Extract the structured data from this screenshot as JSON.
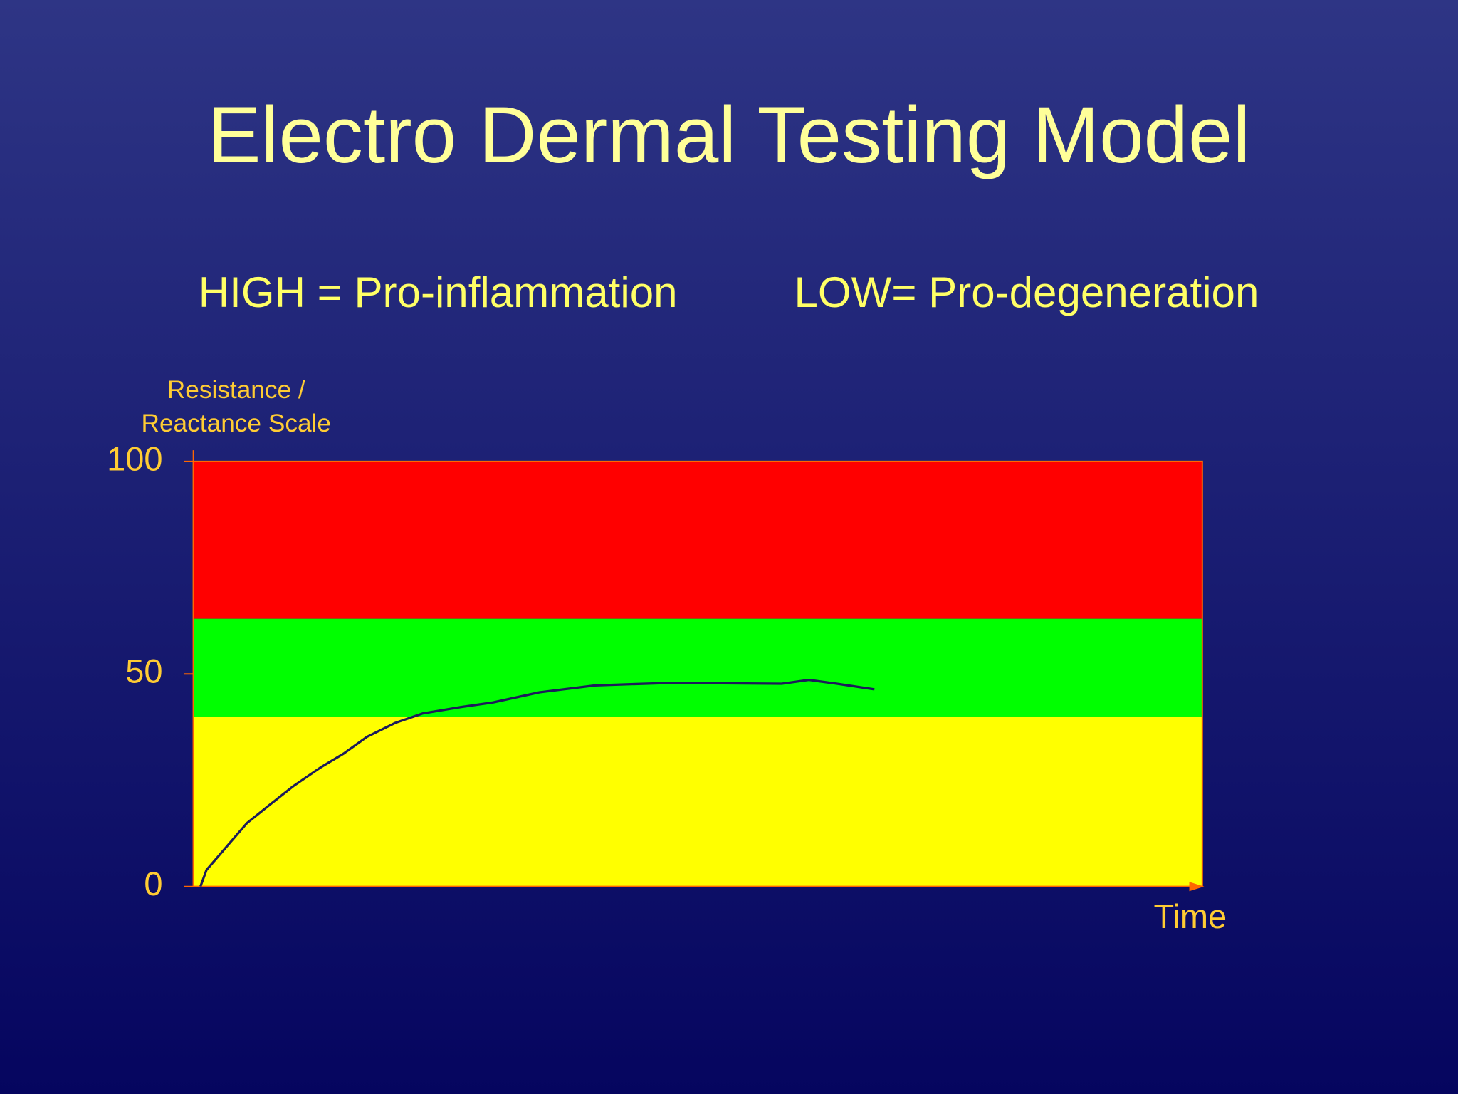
{
  "chart_data": {
    "type": "line",
    "title": "Electro Dermal Testing Model",
    "annotations": [
      "HIGH = Pro-inflammation",
      "LOW= Pro-degeneration"
    ],
    "y_label": [
      "Resistance /",
      "Reactance Scale"
    ],
    "x_label": "Time",
    "xlim": [
      0,
      100
    ],
    "ylim": [
      0,
      100
    ],
    "yticks": [
      0,
      50,
      100
    ],
    "bands": [
      {
        "from": 63,
        "to": 100,
        "color": "#ff0000"
      },
      {
        "from": 40,
        "to": 63,
        "color": "#00ff00"
      },
      {
        "from": 0,
        "to": 40,
        "color": "#ffff00"
      }
    ],
    "color": "#1c1c5a",
    "x": [
      0.7,
      1.3,
      2.5,
      3.7,
      5.3,
      7.6,
      9.9,
      12.6,
      14.9,
      17.2,
      20.0,
      22.7,
      26.5,
      29.7,
      34.3,
      39.8,
      47.2,
      58.3,
      61.0,
      63.8,
      67.5
    ],
    "values": [
      0,
      3.9,
      7.2,
      10.5,
      14.9,
      19.3,
      23.6,
      28.0,
      31.3,
      35.2,
      38.5,
      40.7,
      42.2,
      43.3,
      45.7,
      47.3,
      47.9,
      47.7,
      48.6,
      47.7,
      46.4
    ]
  }
}
